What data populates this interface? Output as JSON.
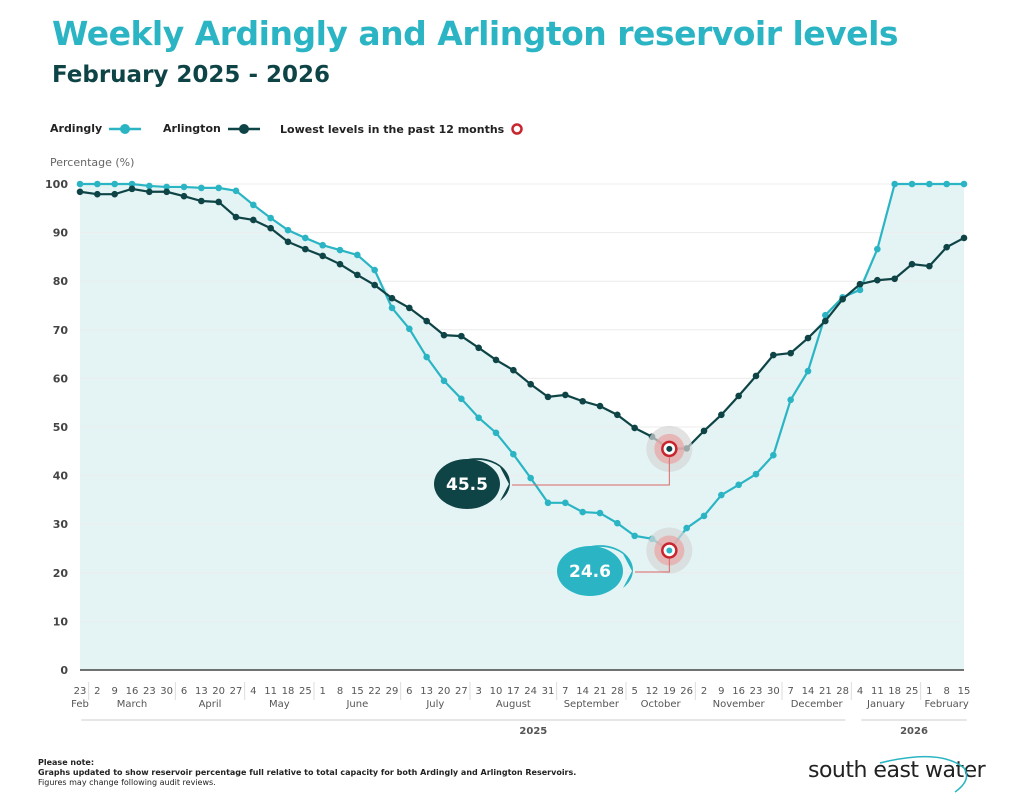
{
  "title": "Weekly Ardingly and Arlington reservoir levels",
  "subtitle": "February 2025 - 2026",
  "legend": {
    "ardingly": "Ardingly",
    "arlington": "Arlington",
    "lowest": "Lowest levels in the past 12 months"
  },
  "note": {
    "heading": "Please note:",
    "line1": "Graphs updated to show reservoir percentage full relative to total capacity for both Ardingly and Arlington Reservoirs.",
    "line2": "Figures may change following audit reviews."
  },
  "logo": "south east water",
  "colors": {
    "ardingly": "#2bb5c4",
    "arlington": "#0f4446",
    "lowest": "#c8262e",
    "fill": "#e4f4f5"
  },
  "chart_data": {
    "type": "line",
    "ylabel": "Percentage (%)",
    "ylim": [
      0,
      100
    ],
    "yticks": [
      0,
      10,
      20,
      30,
      40,
      50,
      60,
      70,
      80,
      90,
      100
    ],
    "grid": true,
    "legend_position": "top-left",
    "x": [
      "23",
      "2",
      "9",
      "16",
      "23",
      "30",
      "6",
      "13",
      "20",
      "27",
      "4",
      "11",
      "18",
      "25",
      "1",
      "8",
      "15",
      "22",
      "29",
      "6",
      "13",
      "20",
      "27",
      "3",
      "10",
      "17",
      "24",
      "31",
      "7",
      "14",
      "21",
      "28",
      "5",
      "12",
      "19",
      "26",
      "2",
      "9",
      "16",
      "23",
      "30",
      "7",
      "14",
      "21",
      "28",
      "4",
      "11",
      "18",
      "25",
      "1",
      "8",
      "15"
    ],
    "months": [
      {
        "label": "Feb",
        "start": 0,
        "end": 0
      },
      {
        "label": "March",
        "start": 1,
        "end": 5
      },
      {
        "label": "April",
        "start": 6,
        "end": 9
      },
      {
        "label": "May",
        "start": 10,
        "end": 13
      },
      {
        "label": "June",
        "start": 14,
        "end": 18
      },
      {
        "label": "July",
        "start": 19,
        "end": 22
      },
      {
        "label": "August",
        "start": 23,
        "end": 27
      },
      {
        "label": "September",
        "start": 28,
        "end": 31
      },
      {
        "label": "October",
        "start": 32,
        "end": 35
      },
      {
        "label": "November",
        "start": 36,
        "end": 40
      },
      {
        "label": "December",
        "start": 41,
        "end": 44
      },
      {
        "label": "January",
        "start": 45,
        "end": 48
      },
      {
        "label": "February",
        "start": 49,
        "end": 51
      }
    ],
    "years": [
      {
        "label": "2025",
        "start": 0,
        "end": 44
      },
      {
        "label": "2026",
        "start": 45,
        "end": 51
      }
    ],
    "series": [
      {
        "name": "Ardingly",
        "values": [
          100,
          100,
          100,
          100,
          99.6,
          99.4,
          99.4,
          99.2,
          99.2,
          98.6,
          95.7,
          93.0,
          90.5,
          88.9,
          87.4,
          86.4,
          85.4,
          82.3,
          74.5,
          70.2,
          64.4,
          59.5,
          55.8,
          51.9,
          48.8,
          44.4,
          39.5,
          34.4,
          34.4,
          32.5,
          32.3,
          30.2,
          27.6,
          27.0,
          24.6,
          29.2,
          31.7,
          36.0,
          38.1,
          40.3,
          44.2,
          55.6,
          61.5,
          73.0,
          76.7,
          78.2,
          86.6,
          100,
          100,
          100,
          100,
          100
        ]
      },
      {
        "name": "Arlington",
        "values": [
          98.4,
          97.9,
          97.9,
          99.0,
          98.4,
          98.4,
          97.5,
          96.5,
          96.3,
          93.2,
          92.6,
          90.9,
          88.1,
          86.6,
          85.2,
          83.5,
          81.3,
          79.2,
          76.5,
          74.5,
          71.8,
          68.9,
          68.7,
          66.3,
          63.8,
          61.7,
          58.8,
          56.2,
          56.6,
          55.3,
          54.3,
          52.5,
          49.8,
          48.0,
          45.5,
          45.6,
          49.2,
          52.5,
          56.4,
          60.5,
          64.8,
          65.2,
          68.3,
          71.8,
          76.3,
          79.4,
          80.2,
          80.5,
          83.5,
          83.1,
          87.0,
          88.9
        ]
      }
    ],
    "annotations": [
      {
        "series": "Arlington",
        "index": 34,
        "label": "45.5"
      },
      {
        "series": "Ardingly",
        "index": 34,
        "label": "24.6"
      }
    ]
  }
}
